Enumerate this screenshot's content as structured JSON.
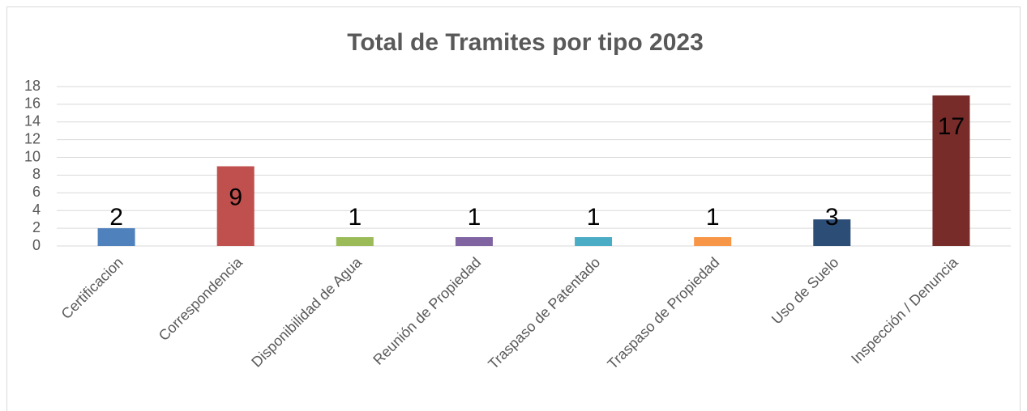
{
  "chart_data": {
    "type": "bar",
    "title": "Total de Tramites por tipo 2023",
    "categories": [
      "Certificacion",
      "Correspondencia",
      "Disponibilidad de Agua",
      "Reunión de Propiedad",
      "Traspaso de Patentado",
      "Traspaso de Propiedad",
      "Uso de Suelo",
      "Inspección / Denuncia"
    ],
    "values": [
      2,
      9,
      1,
      1,
      1,
      1,
      3,
      17
    ],
    "colors": [
      "#4f81bd",
      "#c0504d",
      "#9bbb59",
      "#8064a2",
      "#4bacc6",
      "#f79646",
      "#2c4d75",
      "#772c2a"
    ],
    "ylim": [
      0,
      18
    ],
    "yticks": [
      0,
      2,
      4,
      6,
      8,
      10,
      12,
      14,
      16,
      18
    ],
    "grid": true
  }
}
